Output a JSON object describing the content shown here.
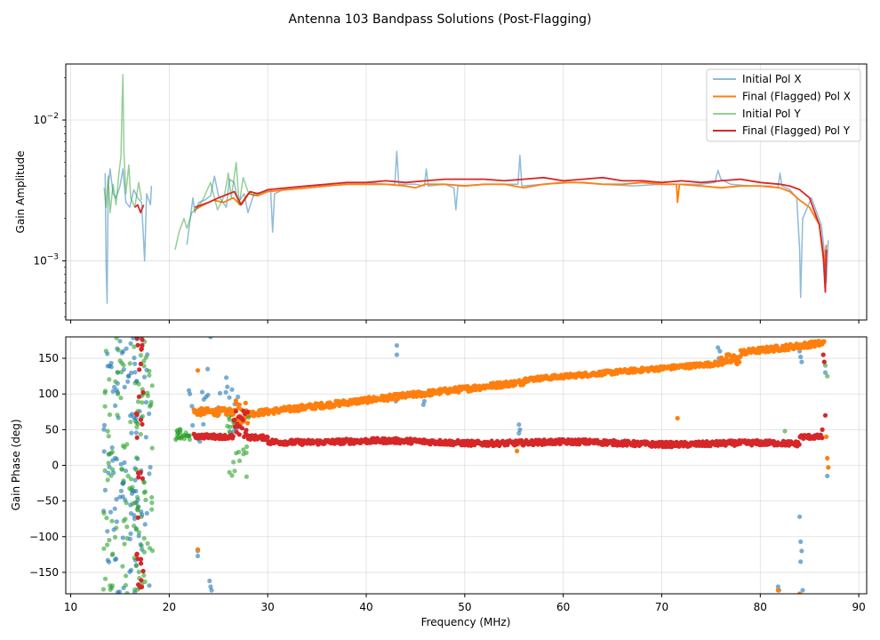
{
  "figure": {
    "title": "Antenna 103 Bandpass Solutions (Post-Flagging)"
  },
  "chart_data": [
    {
      "type": "line",
      "name": "amplitude",
      "ylabel": "Gain Amplitude",
      "xlabel": "",
      "xlim": [
        9.5,
        90.8
      ],
      "ylim": [
        0.00038,
        0.025
      ],
      "yscale": "log",
      "yticks": [
        {
          "v": 0.001,
          "m": "10",
          "e": "−3"
        },
        {
          "v": 0.01,
          "m": "10",
          "e": "−2"
        }
      ],
      "xticks": [
        10,
        20,
        30,
        40,
        50,
        60,
        70,
        80,
        90
      ],
      "grid": true,
      "legend": "top-right",
      "series": [
        {
          "name": "Initial Pol X",
          "color": "#1f77b4",
          "opacity": 0.5,
          "points": [
            [
              13.5,
              0.0042
            ],
            [
              13.6,
              0.0009
            ],
            [
              13.7,
              0.0005
            ],
            [
              13.8,
              0.0034
            ],
            [
              14.0,
              0.0045
            ],
            [
              14.3,
              0.003
            ],
            [
              14.6,
              0.0028
            ],
            [
              15.0,
              0.0034
            ],
            [
              15.3,
              0.0045
            ],
            [
              15.6,
              0.0026
            ],
            [
              16.0,
              0.0024
            ],
            [
              16.4,
              0.0032
            ],
            [
              16.8,
              0.0028
            ],
            [
              17.2,
              0.0026
            ],
            [
              17.5,
              0.001
            ],
            [
              17.7,
              0.003
            ],
            [
              18.1,
              0.0025
            ],
            [
              18.2,
              0.0034
            ],
            [
              null,
              null
            ],
            [
              21.8,
              0.0013
            ],
            [
              22.1,
              0.0019
            ],
            [
              22.4,
              0.0028
            ],
            [
              22.6,
              0.0022
            ],
            [
              23.0,
              0.0026
            ],
            [
              23.6,
              0.0027
            ],
            [
              24.2,
              0.0029
            ],
            [
              24.6,
              0.004
            ],
            [
              25.0,
              0.0029
            ],
            [
              25.8,
              0.0024
            ],
            [
              26.1,
              0.0038
            ],
            [
              26.6,
              0.0036
            ],
            [
              27.0,
              0.0026
            ],
            [
              27.6,
              0.003
            ],
            [
              28.0,
              0.0022
            ],
            [
              28.6,
              0.003
            ],
            [
              29.6,
              0.0031
            ],
            [
              30.3,
              0.0032
            ],
            [
              30.5,
              0.0016
            ],
            [
              30.7,
              0.003
            ],
            [
              32,
              0.0033
            ],
            [
              34,
              0.0034
            ],
            [
              36,
              0.0035
            ],
            [
              38,
              0.0036
            ],
            [
              40,
              0.0036
            ],
            [
              42,
              0.0035
            ],
            [
              42.9,
              0.0035
            ],
            [
              43.1,
              0.006
            ],
            [
              43.3,
              0.0035
            ],
            [
              45,
              0.0035
            ],
            [
              45.9,
              0.0034
            ],
            [
              46.1,
              0.0045
            ],
            [
              46.3,
              0.0034
            ],
            [
              48,
              0.0035
            ],
            [
              48.9,
              0.0033
            ],
            [
              49.1,
              0.0023
            ],
            [
              49.3,
              0.0034
            ],
            [
              52,
              0.0035
            ],
            [
              55,
              0.0035
            ],
            [
              55.4,
              0.0035
            ],
            [
              55.6,
              0.0056
            ],
            [
              55.8,
              0.0034
            ],
            [
              58,
              0.0035
            ],
            [
              61,
              0.0036
            ],
            [
              64,
              0.0035
            ],
            [
              67,
              0.0034
            ],
            [
              70,
              0.0035
            ],
            [
              72,
              0.0035
            ],
            [
              74,
              0.0035
            ],
            [
              75.4,
              0.0036
            ],
            [
              75.7,
              0.0044
            ],
            [
              76.0,
              0.0038
            ],
            [
              77,
              0.0035
            ],
            [
              79,
              0.0034
            ],
            [
              81,
              0.0034
            ],
            [
              81.8,
              0.0033
            ],
            [
              82,
              0.0042
            ],
            [
              82.2,
              0.0034
            ],
            [
              83,
              0.0032
            ],
            [
              83.7,
              0.0028
            ],
            [
              84.0,
              0.0012
            ],
            [
              84.1,
              0.00055
            ],
            [
              84.3,
              0.002
            ],
            [
              85.2,
              0.0028
            ],
            [
              86.2,
              0.0018
            ],
            [
              86.6,
              0.001
            ],
            [
              86.7,
              0.0007
            ],
            [
              86.9,
              0.0014
            ]
          ]
        },
        {
          "name": "Final (Flagged) Pol X",
          "color": "#ff7f0e",
          "opacity": 1,
          "points": [
            [
              22.6,
              0.0023
            ],
            [
              23.5,
              0.0025
            ],
            [
              24.5,
              0.0027
            ],
            [
              25.5,
              0.0026
            ],
            [
              26.5,
              0.0028
            ],
            [
              27.2,
              0.0025
            ],
            [
              28,
              0.003
            ],
            [
              29,
              0.0029
            ],
            [
              30,
              0.0031
            ],
            [
              32,
              0.0032
            ],
            [
              34,
              0.0033
            ],
            [
              36,
              0.0034
            ],
            [
              38,
              0.0035
            ],
            [
              40,
              0.0035
            ],
            [
              42,
              0.0035
            ],
            [
              44,
              0.0034
            ],
            [
              45,
              0.0033
            ],
            [
              46,
              0.0035
            ],
            [
              48,
              0.0035
            ],
            [
              50,
              0.0034
            ],
            [
              52,
              0.0035
            ],
            [
              54,
              0.0035
            ],
            [
              55,
              0.0034
            ],
            [
              56,
              0.0033
            ],
            [
              58,
              0.0035
            ],
            [
              60,
              0.0036
            ],
            [
              62,
              0.0036
            ],
            [
              64,
              0.0035
            ],
            [
              66,
              0.0035
            ],
            [
              68,
              0.0036
            ],
            [
              70,
              0.0035
            ],
            [
              71.5,
              0.0035
            ],
            [
              71.6,
              0.0026
            ],
            [
              71.8,
              0.0035
            ],
            [
              74,
              0.0034
            ],
            [
              76,
              0.0033
            ],
            [
              78,
              0.0034
            ],
            [
              80,
              0.0034
            ],
            [
              82,
              0.0033
            ],
            [
              83,
              0.0031
            ],
            [
              84,
              0.0027
            ],
            [
              85,
              0.0024
            ],
            [
              86,
              0.0018
            ],
            [
              86.5,
              0.0009
            ],
            [
              86.7,
              0.0013
            ]
          ]
        },
        {
          "name": "Initial Pol Y",
          "color": "#2ca02c",
          "opacity": 0.5,
          "points": [
            [
              13.4,
              0.0033
            ],
            [
              13.6,
              0.0024
            ],
            [
              13.8,
              0.004
            ],
            [
              14.0,
              0.0022
            ],
            [
              14.3,
              0.0035
            ],
            [
              14.6,
              0.0025
            ],
            [
              14.9,
              0.0042
            ],
            [
              15.1,
              0.0055
            ],
            [
              15.2,
              0.012
            ],
            [
              15.3,
              0.021
            ],
            [
              15.4,
              0.006
            ],
            [
              15.6,
              0.003
            ],
            [
              15.9,
              0.0048
            ],
            [
              16.1,
              0.0028
            ],
            [
              16.5,
              0.0024
            ],
            [
              16.9,
              0.0036
            ],
            [
              17.2,
              0.0027
            ],
            [
              null,
              null
            ],
            [
              20.6,
              0.0012
            ],
            [
              21.0,
              0.0016
            ],
            [
              21.5,
              0.002
            ],
            [
              21.8,
              0.0017
            ],
            [
              22.3,
              0.0022
            ],
            [
              22.9,
              0.0024
            ],
            [
              23.4,
              0.0027
            ],
            [
              24.2,
              0.0036
            ],
            [
              24.9,
              0.0023
            ],
            [
              25.6,
              0.0029
            ],
            [
              26.0,
              0.0042
            ],
            [
              26.3,
              0.0028
            ],
            [
              26.8,
              0.005
            ],
            [
              27.1,
              0.0025
            ],
            [
              27.5,
              0.0039
            ],
            [
              28.0,
              0.0031
            ],
            [
              28.6,
              0.0029
            ],
            [
              30,
              0.0032
            ]
          ]
        },
        {
          "name": "Final (Flagged) Pol Y",
          "color": "#d62728",
          "opacity": 1,
          "points": [
            [
              16.5,
              0.0024
            ],
            [
              16.8,
              0.0025
            ],
            [
              17.1,
              0.0022
            ],
            [
              17.4,
              0.0025
            ],
            [
              null,
              null
            ],
            [
              22.6,
              0.0024
            ],
            [
              24,
              0.0026
            ],
            [
              25,
              0.0028
            ],
            [
              26.6,
              0.0031
            ],
            [
              27.3,
              0.0025
            ],
            [
              28.2,
              0.0031
            ],
            [
              29,
              0.003
            ],
            [
              30,
              0.0032
            ],
            [
              32,
              0.0033
            ],
            [
              34,
              0.0034
            ],
            [
              36,
              0.0035
            ],
            [
              38,
              0.0036
            ],
            [
              40,
              0.0036
            ],
            [
              42,
              0.0037
            ],
            [
              44,
              0.0036
            ],
            [
              46,
              0.0037
            ],
            [
              48,
              0.0038
            ],
            [
              50,
              0.0038
            ],
            [
              52,
              0.0038
            ],
            [
              54,
              0.0037
            ],
            [
              56,
              0.0038
            ],
            [
              58,
              0.0039
            ],
            [
              60,
              0.0037
            ],
            [
              62,
              0.0038
            ],
            [
              64,
              0.0039
            ],
            [
              66,
              0.0037
            ],
            [
              68,
              0.0037
            ],
            [
              70,
              0.0036
            ],
            [
              72,
              0.0037
            ],
            [
              74,
              0.0036
            ],
            [
              76,
              0.0037
            ],
            [
              78,
              0.0038
            ],
            [
              80,
              0.0036
            ],
            [
              82,
              0.0035
            ],
            [
              83,
              0.0034
            ],
            [
              84,
              0.0032
            ],
            [
              85,
              0.0028
            ],
            [
              86,
              0.0018
            ],
            [
              86.4,
              0.0011
            ],
            [
              86.6,
              0.0006
            ],
            [
              86.7,
              0.0012
            ]
          ]
        }
      ]
    },
    {
      "type": "scatter",
      "name": "phase",
      "ylabel": "Gain Phase (deg)",
      "xlabel": "Frequency (MHz)",
      "xlim": [
        9.5,
        90.8
      ],
      "ylim": [
        -180,
        180
      ],
      "yticks": [
        -150,
        -100,
        -50,
        0,
        50,
        100,
        150
      ],
      "xticks": [
        10,
        20,
        30,
        40,
        50,
        60,
        70,
        80,
        90
      ],
      "grid": true,
      "series": [
        {
          "name": "Initial Pol X",
          "color": "#1f77b4",
          "opacity": 0.6,
          "generator": "phaseX"
        },
        {
          "name": "Final (Flagged) Pol X",
          "color": "#ff7f0e",
          "opacity": 1,
          "generator": "phaseXf"
        },
        {
          "name": "Initial Pol Y",
          "color": "#2ca02c",
          "opacity": 0.6,
          "generator": "phaseY"
        },
        {
          "name": "Final (Flagged) Pol Y",
          "color": "#d62728",
          "opacity": 1,
          "generator": "phaseYf"
        }
      ]
    }
  ]
}
